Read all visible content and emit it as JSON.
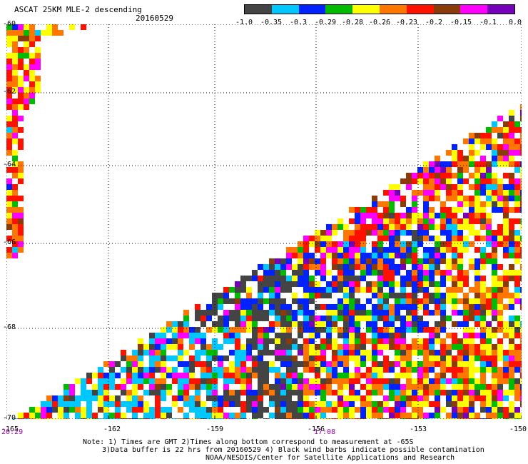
{
  "title": "ASCAT 25KM MLE-2 descending",
  "date": "20160529",
  "colorbar": {
    "colors": [
      "#444444",
      "#00c8ff",
      "#0022ff",
      "#00bb00",
      "#ffff00",
      "#ff7700",
      "#ff1100",
      "#8b3a0a",
      "#ff00ff",
      "#7700bb"
    ],
    "ticks": [
      "-1.0",
      "-0.35",
      "-0.3",
      "-0.29",
      "-0.28",
      "-0.26",
      "-0.23",
      "-0.2",
      "-0.15",
      "-0.1",
      "0.0"
    ]
  },
  "axes": {
    "lat_labels": [
      "-60",
      "-62",
      "-64",
      "-66",
      "-68",
      "-70"
    ],
    "lon_labels": [
      "-165",
      "-162",
      "-159",
      "-156",
      "-153",
      "-150"
    ],
    "time_labels": [
      "20:29",
      "17:08"
    ]
  },
  "notes": [
    "Note: 1) Times are GMT 2)Times along bottom correspond to measurement at -65S",
    "3)Data buffer is 22 hrs from 20160529 4) Black wind barbs indicate possible contamination",
    "NOAA/NESDIS/Center for Satellite Applications and Research"
  ]
}
